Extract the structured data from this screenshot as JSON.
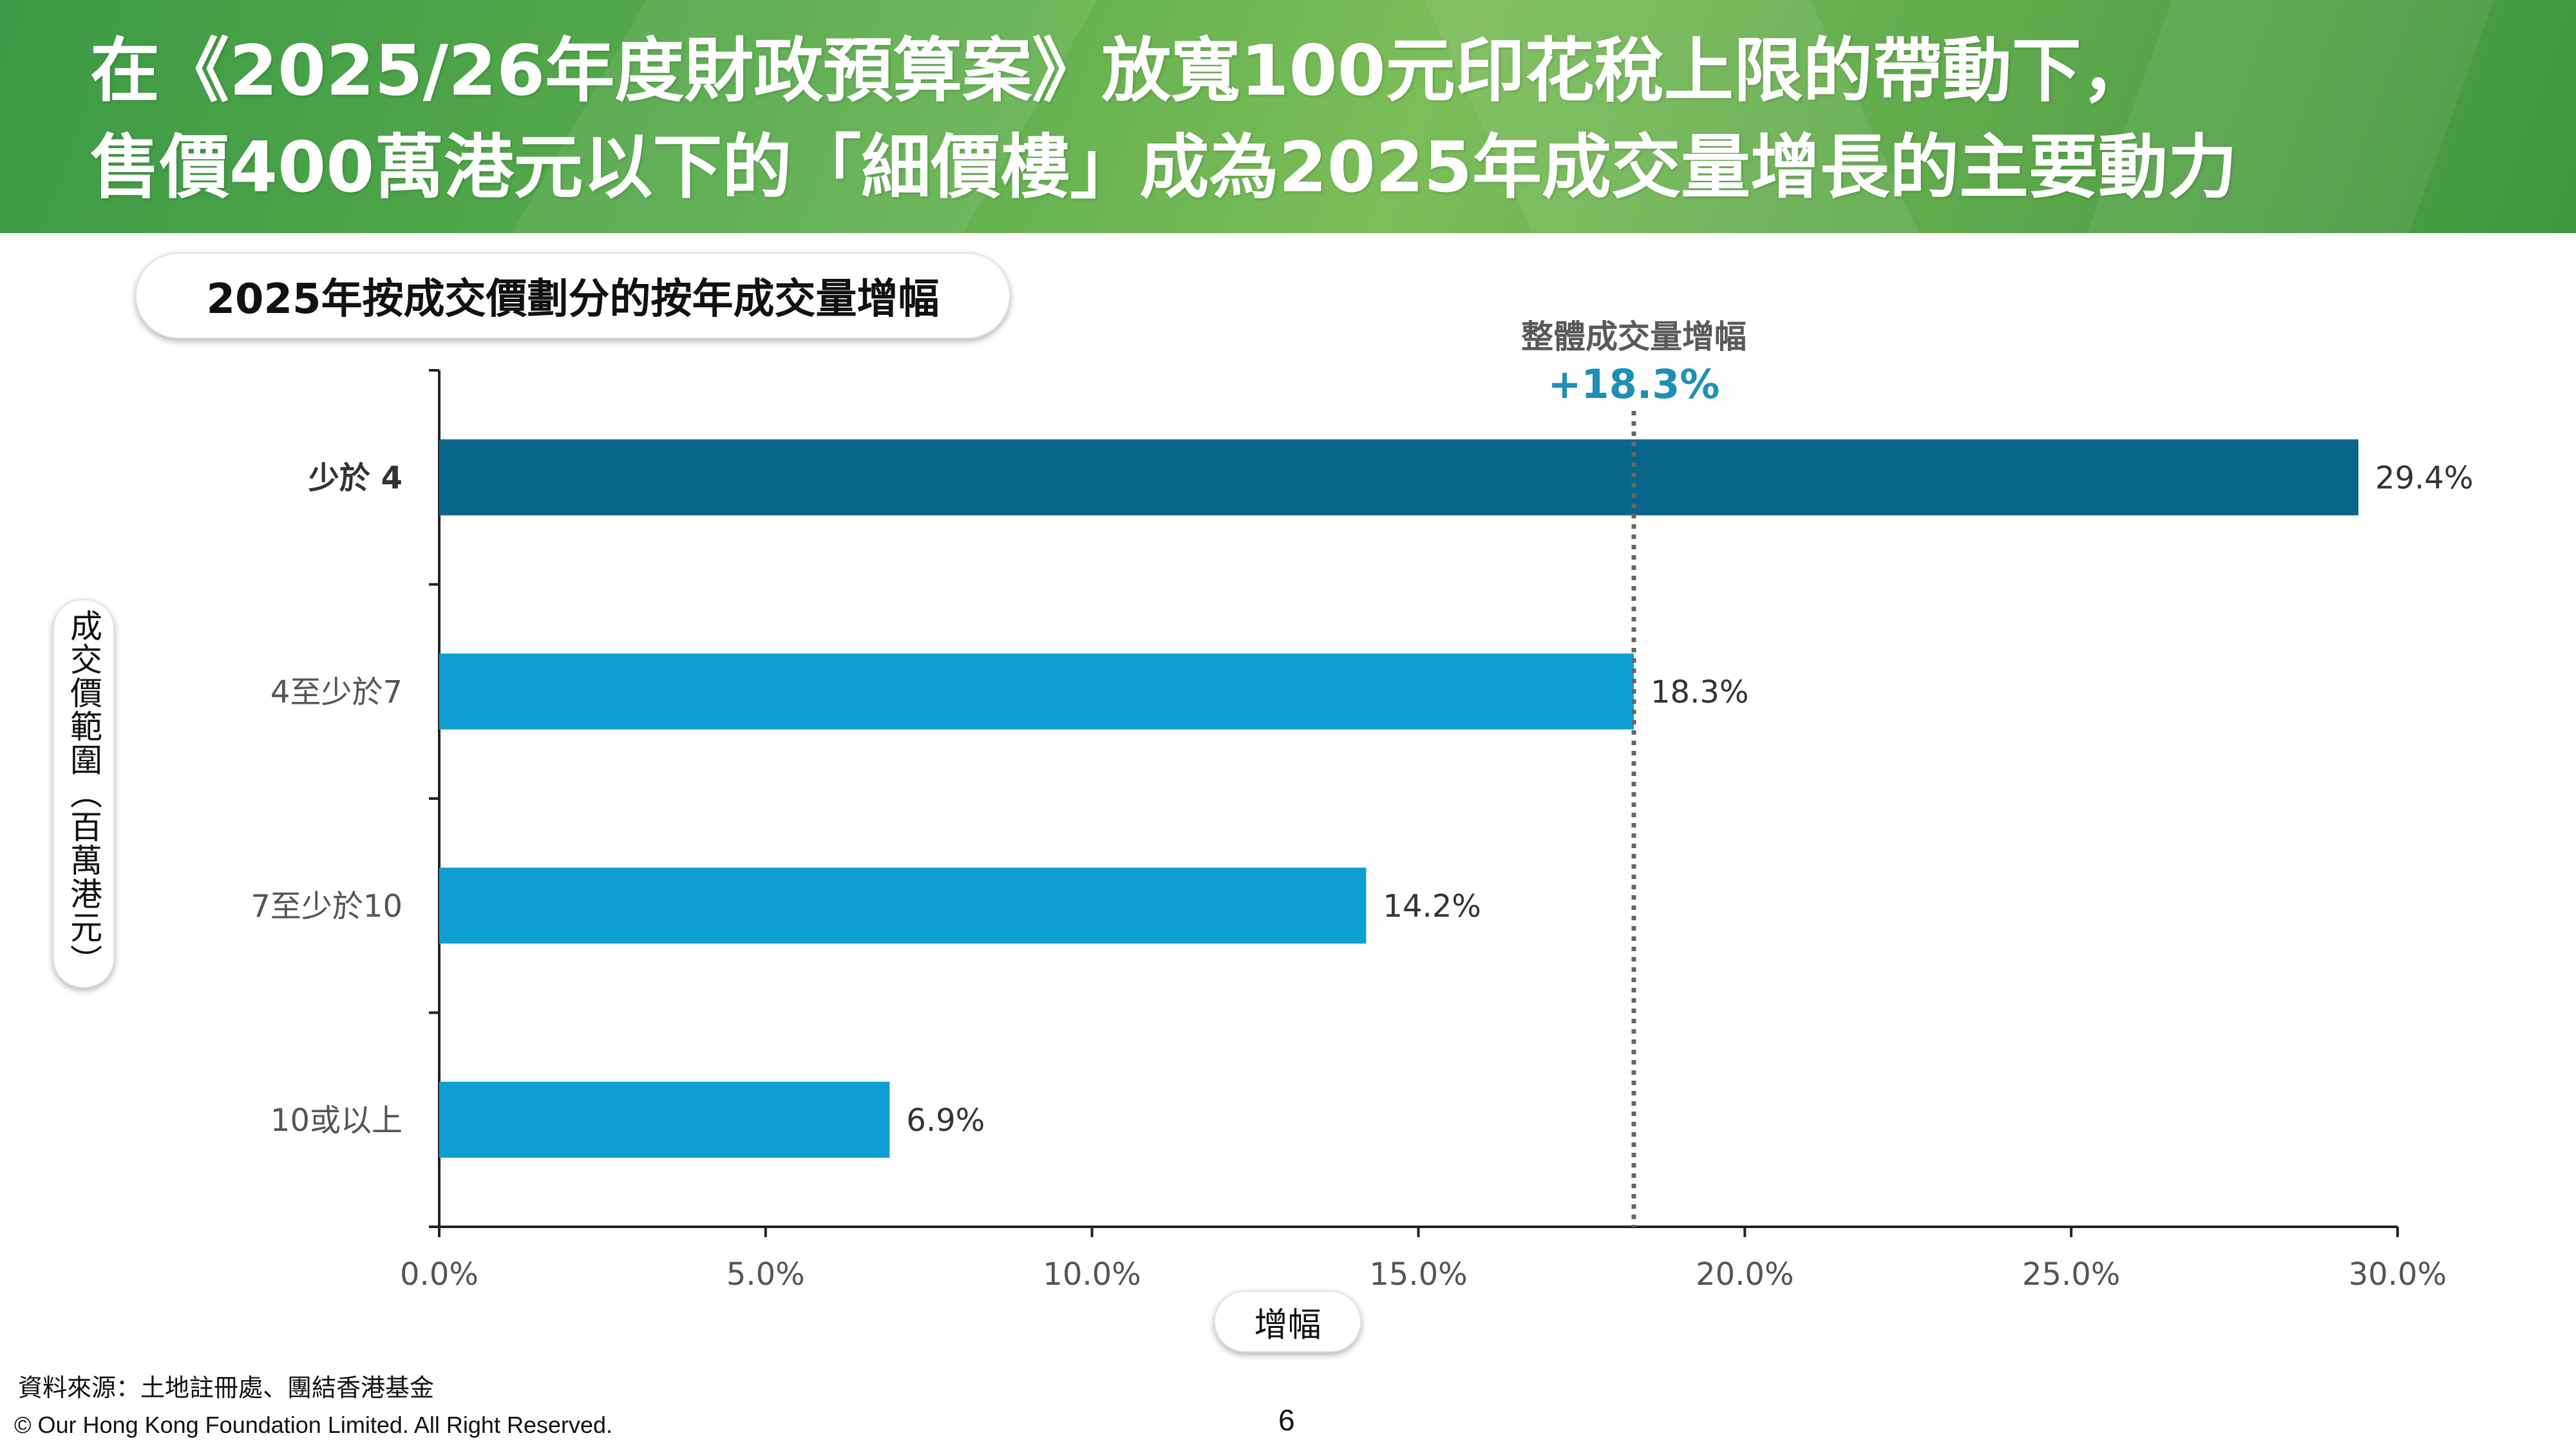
{
  "header": {
    "title_line1": "在《2025/26年度財政預算案》放寬100元印花稅上限的帶動下，",
    "title_line2": "售價400萬港元以下的「細價樓」成為2025年成交量增長的主要動力"
  },
  "chart_data": {
    "type": "bar",
    "orientation": "horizontal",
    "title": "2025年按成交價劃分的按年成交量增幅",
    "xlabel": "增幅",
    "ylabel": "成交價範圍（百萬港元）",
    "categories": [
      "少於 4",
      "4至少於7",
      "7至少於10",
      "10或以上"
    ],
    "values": [
      29.4,
      18.3,
      14.2,
      6.9
    ],
    "value_labels": [
      "29.4%",
      "18.3%",
      "14.2%",
      "6.9%"
    ],
    "xlim": [
      0,
      30
    ],
    "xticks": [
      0,
      5,
      10,
      15,
      20,
      25,
      30
    ],
    "xtick_labels": [
      "0.0%",
      "5.0%",
      "10.0%",
      "15.0%",
      "20.0%",
      "25.0%",
      "30.0%"
    ],
    "reference_line": {
      "value": 18.3,
      "title": "整體成交量增幅",
      "label": "+18.3%",
      "style": "dotted"
    },
    "bar_colors": [
      "#0a6688",
      "#0e9fd2",
      "#0e9fd2",
      "#0e9fd2"
    ],
    "highlight_category": "少於 4",
    "grid": false
  },
  "footer": {
    "source": "資料來源：土地註冊處、團結香港基金",
    "copyright": "© Our Hong Kong Foundation Limited. All Right Reserved.",
    "page_number": "6"
  }
}
